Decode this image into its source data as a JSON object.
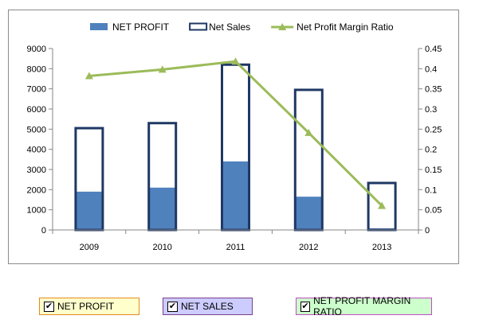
{
  "chart_data": {
    "type": "bar",
    "categories": [
      "2009",
      "2010",
      "2011",
      "2012",
      "2013"
    ],
    "series": [
      {
        "name": "NET PROFIT",
        "kind": "bar-filled",
        "axis": "left",
        "color": "#4f81bd",
        "values": [
          1900,
          2100,
          3400,
          1650,
          80
        ]
      },
      {
        "name": "Net Sales",
        "kind": "bar-outline",
        "axis": "left",
        "color": "#1f3864",
        "values": [
          5050,
          5300,
          8200,
          6950,
          2330
        ]
      },
      {
        "name": "Net Profit Margin Ratio",
        "kind": "line",
        "axis": "right",
        "color": "#9bbb59",
        "values": [
          0.382,
          0.398,
          0.418,
          0.241,
          0.06
        ]
      }
    ],
    "y_left": {
      "min": 0,
      "max": 9000,
      "step": 1000
    },
    "y_right": {
      "min": 0,
      "max": 0.45,
      "step": 0.05
    },
    "y_left_ticks": [
      "0",
      "1000",
      "2000",
      "3000",
      "4000",
      "5000",
      "6000",
      "7000",
      "8000",
      "9000"
    ],
    "y_right_ticks": [
      "0",
      "0.05",
      "0.1",
      "0.15",
      "0.2",
      "0.25",
      "0.3",
      "0.35",
      "0.4",
      "0.45"
    ],
    "legend_position": "top",
    "grid": false
  },
  "controls": [
    {
      "label": "NET PROFIT",
      "checked": true,
      "check_mark": "✔",
      "bg": "#ffffcc",
      "border": "#e38a1e"
    },
    {
      "label": "NET SALES",
      "checked": true,
      "check_mark": "✔",
      "bg": "#ccccff",
      "border": "#7b3f8c"
    },
    {
      "label": "NET PROFIT MARGIN RATIO",
      "checked": true,
      "check_mark": "✔",
      "bg": "#ccffcc",
      "border": "#c04fc0"
    }
  ]
}
